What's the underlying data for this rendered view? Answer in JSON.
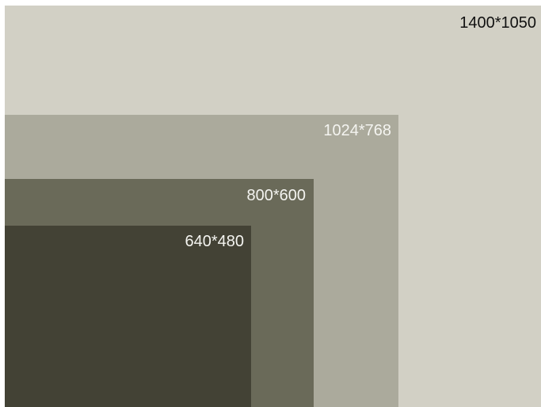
{
  "resolutions": [
    {
      "label": "1400*1050",
      "fill": "#d2d0c5",
      "text_color": "#111111"
    },
    {
      "label": "1024*768",
      "fill": "#abaa9c",
      "text_color": "#f4f4f0"
    },
    {
      "label": "800*600",
      "fill": "#6a6a59",
      "text_color": "#f4f4f0"
    },
    {
      "label": "640*480",
      "fill": "#434235",
      "text_color": "#f4f4f0"
    }
  ]
}
